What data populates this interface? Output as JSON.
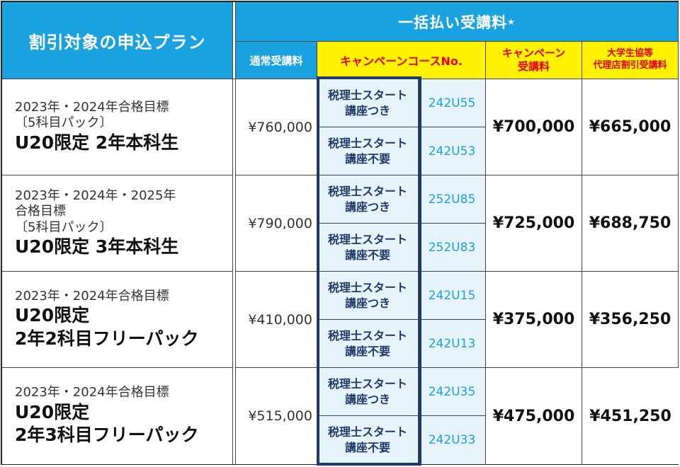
{
  "header": {
    "plan_title": "割引対象の申込プラン",
    "lump_sum_title": "一括払い受講料",
    "lump_sum_mark": "★",
    "regular_fee": "通常受講料",
    "campaign_course_no": "キャンペーンコースNo.",
    "campaign_fee_line1": "キャンペーン",
    "campaign_fee_line2": "受講料",
    "univ_fee_line1": "大学生協等",
    "univ_fee_line2": "代理店割引受講料"
  },
  "option_labels": {
    "with_line1": "税理士スタート",
    "with_line2": "講座つき",
    "without_line1": "税理士スタート",
    "without_line2": "講座不要"
  },
  "plans": [
    {
      "lines": [
        "2023年・2024年合格目標",
        "〔5科目パック〕"
      ],
      "big_lines": [
        "U20限定 2年本科生"
      ],
      "regular_fee": "¥760,000",
      "code_with": "242U55",
      "code_without": "242U53",
      "campaign_fee": "¥700,000",
      "univ_fee": "¥665,000"
    },
    {
      "lines": [
        "2023年・2024年・2025年",
        "合格目標",
        "〔5科目パック〕"
      ],
      "big_lines": [
        "U20限定 3年本科生"
      ],
      "regular_fee": "¥790,000",
      "code_with": "252U85",
      "code_without": "252U83",
      "campaign_fee": "¥725,000",
      "univ_fee": "¥688,750"
    },
    {
      "lines": [
        "2023年・2024年合格目標"
      ],
      "big_lines": [
        "U20限定",
        "2年2科目フリーパック"
      ],
      "regular_fee": "¥410,000",
      "code_with": "242U15",
      "code_without": "242U13",
      "campaign_fee": "¥375,000",
      "univ_fee": "¥356,250"
    },
    {
      "lines": [
        "2023年・2024年合格目標"
      ],
      "big_lines": [
        "U20限定",
        "2年3科目フリーパック"
      ],
      "regular_fee": "¥515,000",
      "code_with": "242U35",
      "code_without": "242U33",
      "campaign_fee": "¥475,000",
      "univ_fee": "¥451,250"
    }
  ]
}
